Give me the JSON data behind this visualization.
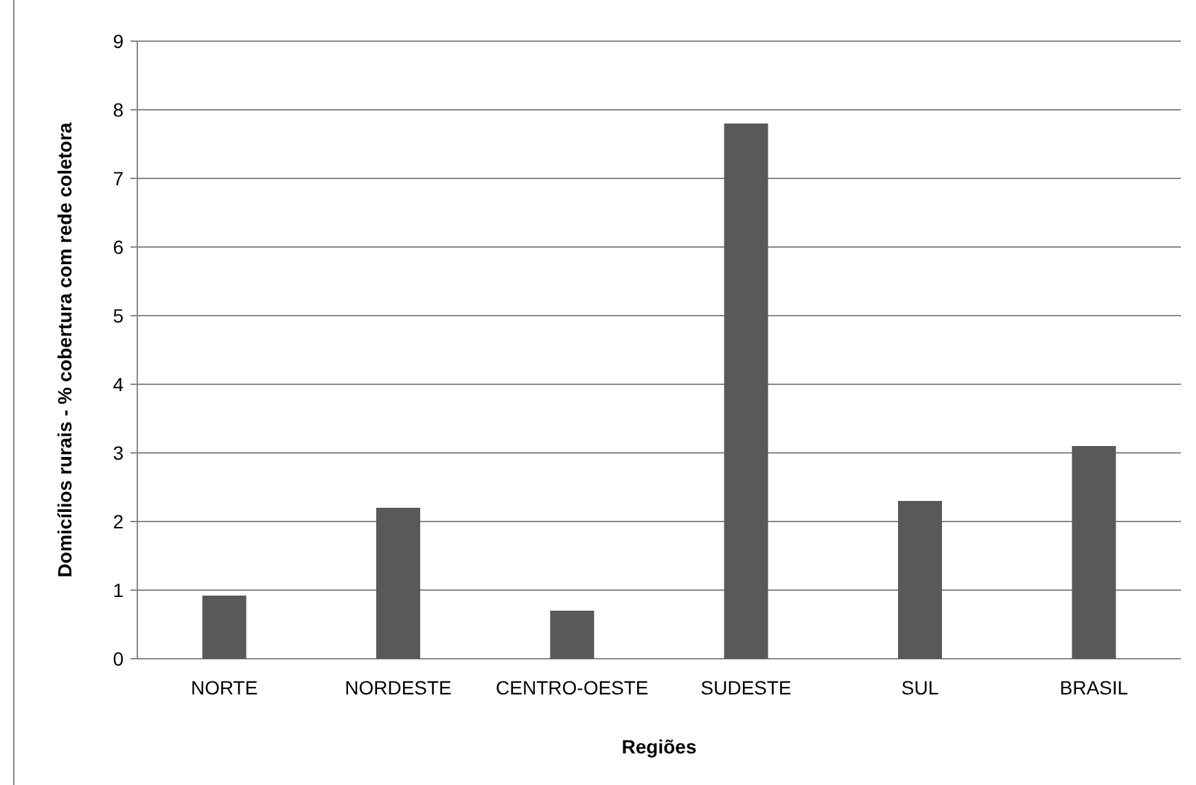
{
  "chart_data": {
    "type": "bar",
    "xlabel": "Regiões",
    "ylabel": "Domicílios rurais - % cobertura com rede coletora",
    "categories": [
      "NORTE",
      "NORDESTE",
      "CENTRO-OESTE",
      "SUDESTE",
      "SUL",
      "BRASIL"
    ],
    "values": [
      0.92,
      2.2,
      0.7,
      7.8,
      2.3,
      3.1
    ],
    "color": "#595959",
    "ylim": [
      0,
      9
    ],
    "yticks": [
      0,
      1,
      2,
      3,
      4,
      5,
      6,
      7,
      8,
      9
    ],
    "grid": "y"
  }
}
